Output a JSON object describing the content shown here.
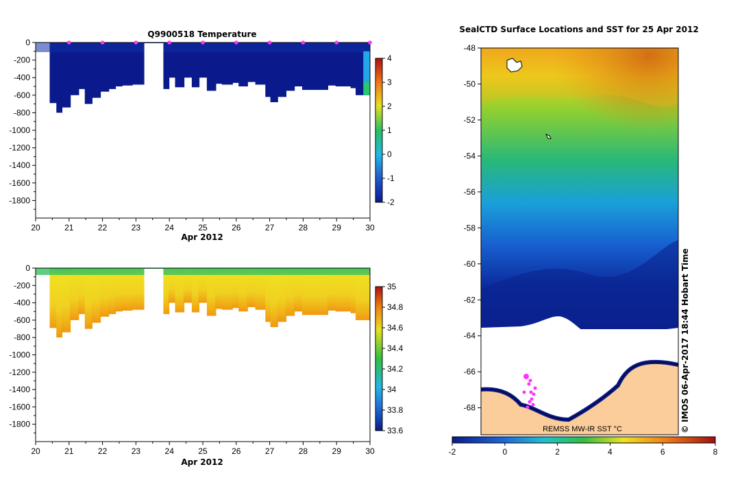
{
  "chart_data": [
    {
      "id": "temperature",
      "type": "heatmap",
      "title": "Q9900518  Temperature",
      "xlabel": "Apr 2012",
      "xlim": [
        20,
        30
      ],
      "ylim": [
        -2000,
        0
      ],
      "xticks": [
        "20",
        "21",
        "22",
        "23",
        "24",
        "25",
        "26",
        "27",
        "28",
        "29",
        "30"
      ],
      "yticks": [
        "0",
        "-200",
        "-400",
        "-600",
        "-800",
        "-1000",
        "-1200",
        "-1400",
        "-1600",
        "-1800"
      ],
      "profile_times": [
        20.45,
        20.65,
        20.8,
        21.05,
        21.3,
        21.5,
        21.7,
        21.95,
        22.2,
        22.4,
        22.6,
        22.9,
        23.1,
        23.85,
        24.0,
        24.2,
        24.45,
        24.7,
        24.9,
        25.15,
        25.4,
        25.6,
        25.9,
        26.1,
        26.35,
        26.6,
        26.9,
        27.05,
        27.25,
        27.5,
        27.75,
        28.0,
        28.25,
        28.5,
        28.75,
        29.0,
        29.2,
        29.45,
        29.6,
        29.85,
        29.97
      ],
      "profile_depths": [
        -690,
        -800,
        -740,
        -600,
        -530,
        -700,
        -630,
        -560,
        -530,
        -500,
        -490,
        -480,
        -480,
        -530,
        -400,
        -510,
        -400,
        -510,
        -400,
        -550,
        -470,
        -480,
        -460,
        -500,
        -450,
        -480,
        -620,
        -680,
        -620,
        -550,
        -500,
        -540,
        -540,
        -540,
        -490,
        -500,
        -500,
        -520,
        -600,
        -600,
        -600
      ],
      "markers": [
        21,
        22,
        23,
        24,
        25,
        26,
        27,
        28,
        29,
        30
      ],
      "colorbar": {
        "min": -2,
        "max": 4,
        "ticks": [
          "-2",
          "-1",
          "0",
          "1",
          "2",
          "3",
          "4"
        ]
      }
    },
    {
      "id": "salinity",
      "type": "heatmap",
      "title": "",
      "xlabel": "Apr 2012",
      "xlim": [
        20,
        30
      ],
      "ylim": [
        -2000,
        0
      ],
      "xticks": [
        "20",
        "21",
        "22",
        "23",
        "24",
        "25",
        "26",
        "27",
        "28",
        "29",
        "30"
      ],
      "yticks": [
        "0",
        "-200",
        "-400",
        "-600",
        "-800",
        "-1000",
        "-1200",
        "-1400",
        "-1600",
        "-1800"
      ],
      "colorbar": {
        "min": 33.6,
        "max": 35.0,
        "ticks": [
          "33.6",
          "33.8",
          "34",
          "34.2",
          "34.4",
          "34.6",
          "34.8",
          "35"
        ]
      }
    },
    {
      "id": "sst_map",
      "type": "heatmap",
      "title": "SealCTD Surface Locations and SST for 25 Apr 2012",
      "ylim": [
        -69.5,
        -48
      ],
      "yticks": [
        "-48",
        "-50",
        "-52",
        "-54",
        "-56",
        "-58",
        "-60",
        "-62",
        "-64",
        "-66",
        "-68"
      ],
      "source_label": "REMSS MW-IR SST °C",
      "side_label": "© IMOS 06-Apr-2017 18:44 Hobart Time",
      "colorbar": {
        "min": -2,
        "max": 8,
        "ticks": [
          "-2",
          "0",
          "2",
          "4",
          "6",
          "8"
        ]
      }
    }
  ],
  "colors": {
    "ice": "#ffffff",
    "land": "#fbcd9b",
    "marker": "#ff33ff",
    "coast": "#000080"
  }
}
